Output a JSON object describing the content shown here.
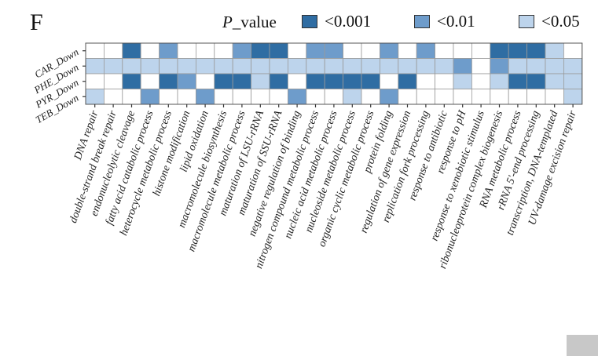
{
  "panel_label": "F",
  "legend": {
    "title_italic": "P",
    "title_rest": "_value",
    "entries": [
      {
        "label": "<0.001",
        "color": "#2f6da3"
      },
      {
        "label": "<0.01",
        "color": "#6e9ccb"
      },
      {
        "label": "<0.05",
        "color": "#bdd4ec"
      }
    ]
  },
  "chart_data": {
    "type": "heatmap",
    "rows": [
      "CAR_Down",
      "PHE_Down",
      "PYR_Down",
      "TEB_Down"
    ],
    "columns": [
      "DNA repair",
      "double-strand break repair",
      "endonucleolytic cleavage",
      "fatty acid catabolic process",
      "heterocycle metabolic process",
      "histone modification",
      "lipid oxidation",
      "macromolecule biosynthesis",
      "macromolecule metabolic process",
      "maturation of LSU-rRNA",
      "maturation of SSU-rRNA",
      "negative regulation of binding",
      "nitrogen compound metabolic process",
      "nucleic acid metabolic process",
      "nucleoside metabolic process",
      "organic cyclic metabolic process",
      "protein folding",
      "regulation of gene expression",
      "replication fork processing",
      "response to antibiotic",
      "response to pH",
      "response to xenobiotic stimulus",
      "ribonucleoprotein complex biogenesis",
      "RNA metabolic process",
      "rRNA 5'-end processing",
      "transcription, DNA-templated",
      "UV-damage excision repair"
    ],
    "cell_levels_legend": "0 = not significant, 1 = <0.05, 2 = <0.01, 3 = <0.001",
    "values": [
      [
        0,
        0,
        3,
        0,
        2,
        0,
        0,
        0,
        2,
        3,
        3,
        0,
        2,
        2,
        0,
        0,
        2,
        0,
        2,
        0,
        0,
        0,
        3,
        3,
        3,
        1,
        0
      ],
      [
        1,
        1,
        1,
        1,
        1,
        1,
        1,
        1,
        1,
        1,
        1,
        1,
        1,
        1,
        1,
        1,
        1,
        1,
        1,
        1,
        2,
        0,
        2,
        1,
        1,
        1,
        1
      ],
      [
        0,
        0,
        3,
        0,
        3,
        2,
        0,
        3,
        3,
        1,
        3,
        0,
        3,
        3,
        3,
        3,
        0,
        3,
        0,
        0,
        1,
        0,
        1,
        3,
        3,
        1,
        1
      ],
      [
        1,
        0,
        0,
        2,
        0,
        0,
        2,
        0,
        0,
        0,
        0,
        2,
        0,
        0,
        1,
        0,
        2,
        0,
        0,
        0,
        0,
        0,
        0,
        0,
        0,
        0,
        1
      ]
    ]
  }
}
